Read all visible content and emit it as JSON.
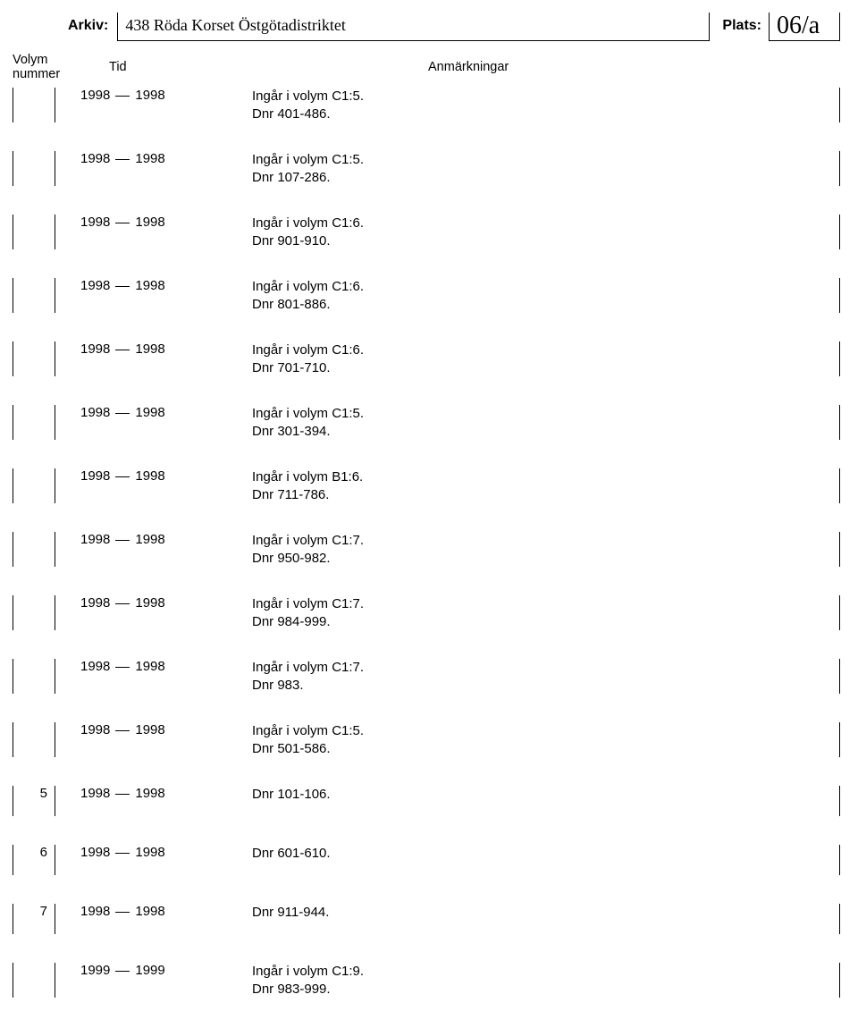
{
  "header": {
    "arkiv_label": "Arkiv:",
    "arkiv_value": "438 Röda Korset Östgötadistriktet",
    "plats_label": "Plats:",
    "plats_value": "06/a"
  },
  "columns": {
    "volym1": "Volym",
    "volym2": "nummer",
    "tid": "Tid",
    "anm": "Anmärkningar"
  },
  "rows": [
    {
      "vol": "",
      "yfrom": "1998",
      "yto": "1998",
      "note1": "Ingår i volym C1:5.",
      "note2": "Dnr 401-486."
    },
    {
      "vol": "",
      "yfrom": "1998",
      "yto": "1998",
      "note1": "Ingår i volym C1:5.",
      "note2": "Dnr 107-286."
    },
    {
      "vol": "",
      "yfrom": "1998",
      "yto": "1998",
      "note1": "Ingår i volym C1:6.",
      "note2": "Dnr 901-910."
    },
    {
      "vol": "",
      "yfrom": "1998",
      "yto": "1998",
      "note1": "Ingår i volym C1:6.",
      "note2": "Dnr 801-886."
    },
    {
      "vol": "",
      "yfrom": "1998",
      "yto": "1998",
      "note1": "Ingår i volym C1:6.",
      "note2": "Dnr 701-710."
    },
    {
      "vol": "",
      "yfrom": "1998",
      "yto": "1998",
      "note1": "Ingår i volym C1:5.",
      "note2": "Dnr 301-394."
    },
    {
      "vol": "",
      "yfrom": "1998",
      "yto": "1998",
      "note1": "Ingår i volym B1:6.",
      "note2": "Dnr 711-786."
    },
    {
      "vol": "",
      "yfrom": "1998",
      "yto": "1998",
      "note1": "Ingår i volym C1:7.",
      "note2": "Dnr 950-982."
    },
    {
      "vol": "",
      "yfrom": "1998",
      "yto": "1998",
      "note1": "Ingår i volym C1:7.",
      "note2": "Dnr 984-999."
    },
    {
      "vol": "",
      "yfrom": "1998",
      "yto": "1998",
      "note1": "Ingår i volym C1:7.",
      "note2": "Dnr 983."
    },
    {
      "vol": "",
      "yfrom": "1998",
      "yto": "1998",
      "note1": "Ingår i volym C1:5.",
      "note2": "Dnr 501-586."
    },
    {
      "vol": "5",
      "yfrom": "1998",
      "yto": "1998",
      "note1": "Dnr 101-106.",
      "note2": ""
    },
    {
      "vol": "6",
      "yfrom": "1998",
      "yto": "1998",
      "note1": "Dnr 601-610.",
      "note2": ""
    },
    {
      "vol": "7",
      "yfrom": "1998",
      "yto": "1998",
      "note1": "Dnr 911-944.",
      "note2": ""
    },
    {
      "vol": "",
      "yfrom": "1999",
      "yto": "1999",
      "note1": "Ingår i volym C1:9.",
      "note2": "Dnr 983-999."
    }
  ]
}
